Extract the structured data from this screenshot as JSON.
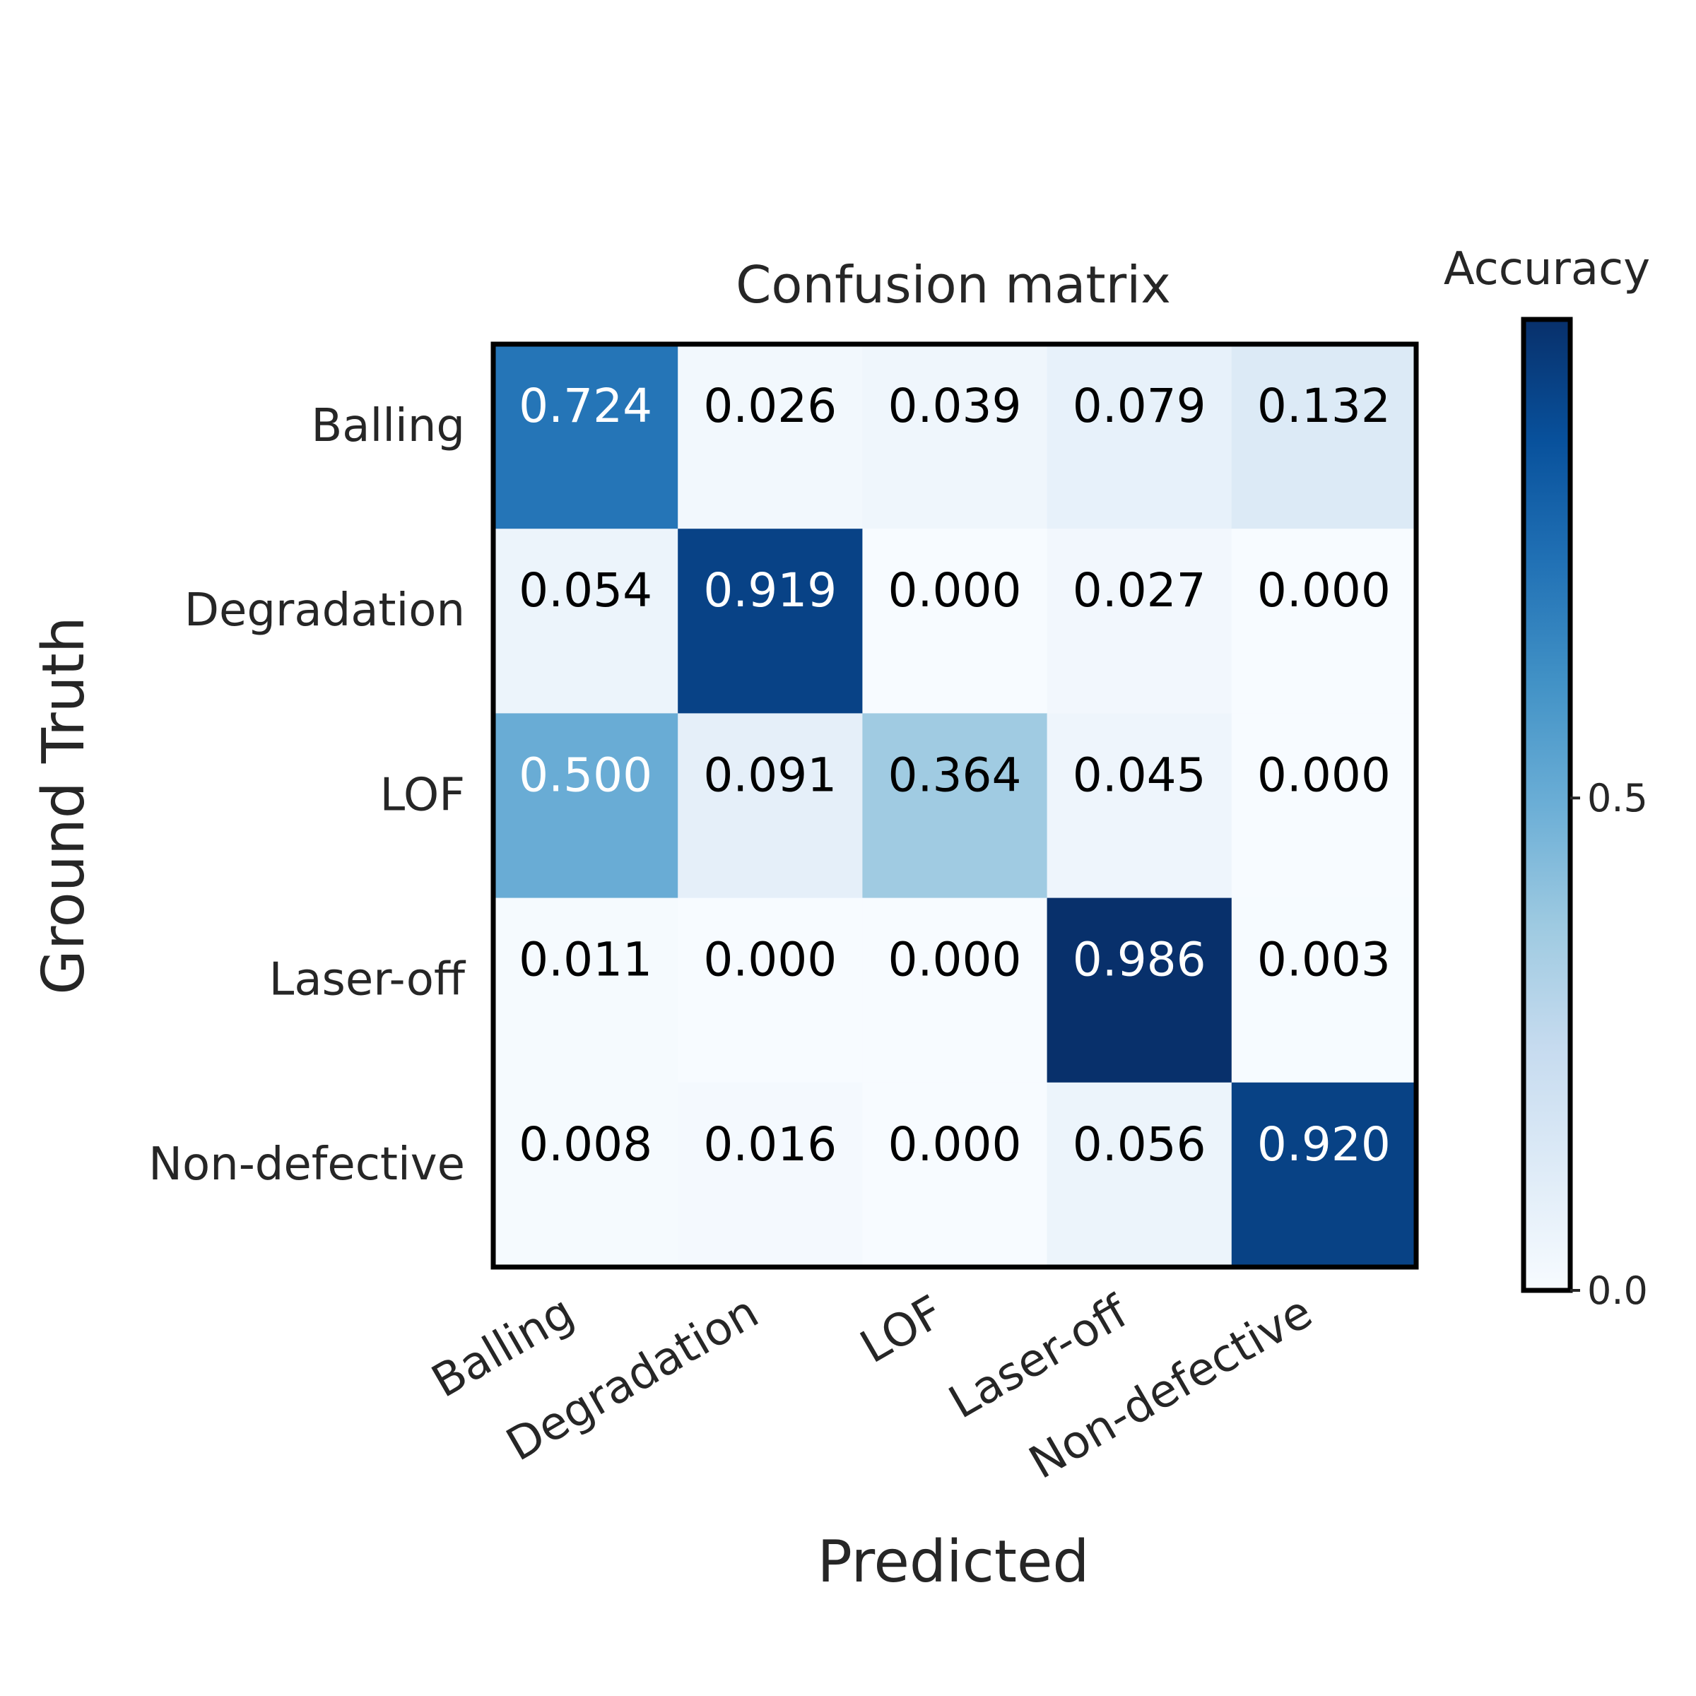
{
  "chart_data": {
    "type": "heatmap",
    "title": "Confusion matrix",
    "xlabel": "Predicted",
    "ylabel": "Ground Truth",
    "x_categories": [
      "Balling",
      "Degradation",
      "LOF",
      "Laser-off",
      "Non-defective"
    ],
    "y_categories": [
      "Balling",
      "Degradation",
      "LOF",
      "Laser-off",
      "Non-defective"
    ],
    "values": [
      [
        0.724,
        0.026,
        0.039,
        0.079,
        0.132
      ],
      [
        0.054,
        0.919,
        0.0,
        0.027,
        0.0
      ],
      [
        0.5,
        0.091,
        0.364,
        0.045,
        0.0
      ],
      [
        0.011,
        0.0,
        0.0,
        0.986,
        0.003
      ],
      [
        0.008,
        0.016,
        0.0,
        0.056,
        0.92
      ]
    ],
    "cell_labels": [
      [
        "0.724",
        "0.026",
        "0.039",
        "0.079",
        "0.132"
      ],
      [
        "0.054",
        "0.919",
        "0.000",
        "0.027",
        "0.000"
      ],
      [
        "0.500",
        "0.091",
        "0.364",
        "0.045",
        "0.000"
      ],
      [
        "0.011",
        "0.000",
        "0.000",
        "0.986",
        "0.003"
      ],
      [
        "0.008",
        "0.016",
        "0.000",
        "0.056",
        "0.920"
      ]
    ],
    "colormap": "Blues",
    "colorbar": {
      "label": "Accuracy",
      "range": [
        0,
        0.986
      ],
      "ticks": [
        0.0,
        0.5
      ],
      "tick_labels": [
        "0.0",
        "0.5"
      ]
    }
  }
}
